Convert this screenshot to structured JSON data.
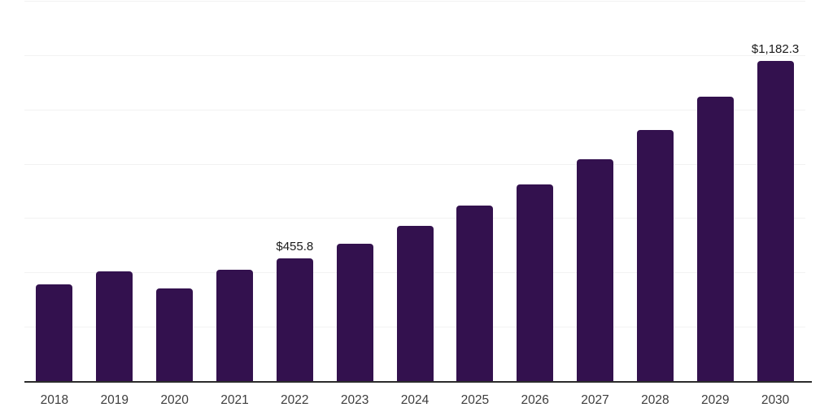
{
  "chart_data": {
    "type": "bar",
    "title": "",
    "xlabel": "",
    "ylabel": "",
    "categories": [
      "2018",
      "2019",
      "2020",
      "2021",
      "2022",
      "2023",
      "2024",
      "2025",
      "2026",
      "2027",
      "2028",
      "2029",
      "2030"
    ],
    "values": [
      360,
      408,
      345,
      414,
      455.8,
      510,
      573,
      648,
      726,
      819,
      927,
      1050,
      1182.3
    ],
    "data_labels": [
      "",
      "",
      "",
      "",
      "$455.8",
      "",
      "",
      "",
      "",
      "",
      "",
      "",
      "$1,182.3"
    ],
    "ylim": [
      0,
      1400
    ],
    "gridline_step": 200,
    "grid": true,
    "legend_position": "none",
    "y_axis_tick_labels_visible": false,
    "colors": {
      "bar": "#33114E",
      "axis_line": "#2b2b2b",
      "gridline": "#f2f2f2",
      "xtick_label": "#3d3d3d",
      "data_label": "#1a1a1a",
      "background": "#ffffff"
    }
  }
}
